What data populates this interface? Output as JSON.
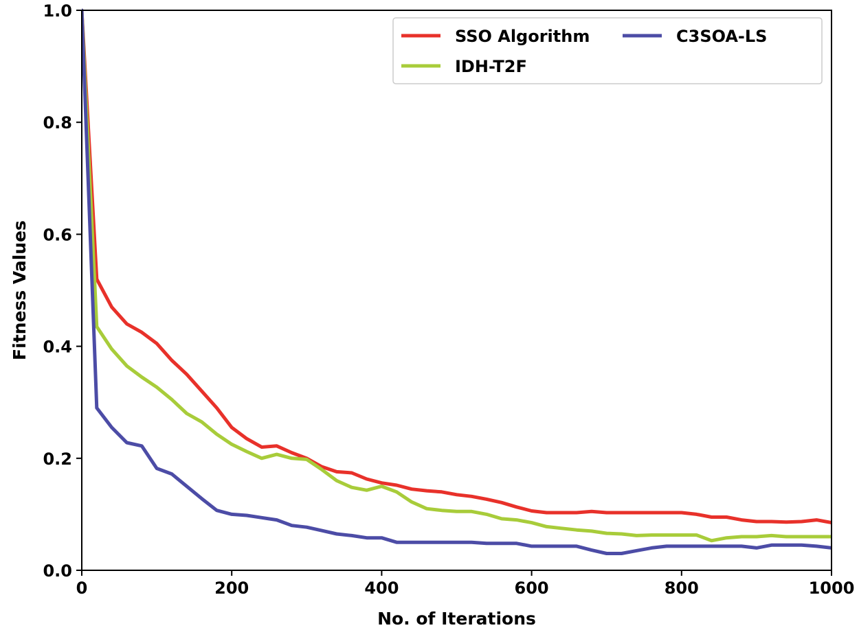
{
  "chart_data": {
    "type": "line",
    "title": "",
    "xlabel": "No. of Iterations",
    "ylabel": "Fitness Values",
    "xlim": [
      0,
      1000
    ],
    "ylim": [
      0.0,
      1.0
    ],
    "xticks": [
      0,
      200,
      400,
      600,
      800,
      1000
    ],
    "xtick_labels": [
      "0",
      "200",
      "400",
      "600",
      "800",
      "1000"
    ],
    "yticks": [
      0.0,
      0.2,
      0.4,
      0.6,
      0.8,
      1.0
    ],
    "ytick_labels": [
      "0.0",
      "0.2",
      "0.4",
      "0.6",
      "0.8",
      "1.0"
    ],
    "grid": false,
    "legend_position": "top-right",
    "series": [
      {
        "name": "SSO Algorithm",
        "color": "#e8312a",
        "x": [
          0,
          20,
          40,
          60,
          80,
          100,
          120,
          140,
          160,
          180,
          200,
          220,
          240,
          260,
          280,
          300,
          320,
          340,
          360,
          380,
          400,
          420,
          440,
          460,
          480,
          500,
          520,
          540,
          560,
          580,
          600,
          620,
          640,
          660,
          680,
          700,
          720,
          740,
          760,
          780,
          800,
          820,
          840,
          860,
          880,
          900,
          920,
          940,
          960,
          980,
          1000
        ],
        "values": [
          1.0,
          0.52,
          0.47,
          0.44,
          0.425,
          0.405,
          0.375,
          0.35,
          0.32,
          0.29,
          0.255,
          0.235,
          0.22,
          0.222,
          0.21,
          0.2,
          0.185,
          0.176,
          0.174,
          0.163,
          0.156,
          0.152,
          0.145,
          0.142,
          0.14,
          0.135,
          0.132,
          0.127,
          0.121,
          0.113,
          0.106,
          0.103,
          0.103,
          0.103,
          0.105,
          0.103,
          0.103,
          0.103,
          0.103,
          0.103,
          0.103,
          0.1,
          0.095,
          0.095,
          0.09,
          0.087,
          0.087,
          0.086,
          0.087,
          0.09,
          0.085
        ]
      },
      {
        "name": "IDH-T2F",
        "color": "#a8cc3a",
        "x": [
          0,
          20,
          40,
          60,
          80,
          100,
          120,
          140,
          160,
          180,
          200,
          220,
          240,
          260,
          280,
          300,
          320,
          340,
          360,
          380,
          400,
          420,
          440,
          460,
          480,
          500,
          520,
          540,
          560,
          580,
          600,
          620,
          640,
          660,
          680,
          700,
          720,
          740,
          760,
          780,
          800,
          820,
          840,
          860,
          880,
          900,
          920,
          940,
          960,
          980,
          1000
        ],
        "values": [
          1.0,
          0.435,
          0.395,
          0.365,
          0.345,
          0.327,
          0.305,
          0.28,
          0.265,
          0.243,
          0.225,
          0.212,
          0.2,
          0.207,
          0.2,
          0.198,
          0.18,
          0.16,
          0.148,
          0.143,
          0.15,
          0.14,
          0.122,
          0.11,
          0.107,
          0.105,
          0.105,
          0.1,
          0.092,
          0.09,
          0.085,
          0.078,
          0.075,
          0.072,
          0.07,
          0.066,
          0.065,
          0.062,
          0.063,
          0.063,
          0.063,
          0.063,
          0.053,
          0.058,
          0.06,
          0.06,
          0.062,
          0.06,
          0.06,
          0.06,
          0.06
        ]
      },
      {
        "name": "C3SOA-LS",
        "color": "#4c4ca6",
        "x": [
          0,
          20,
          40,
          60,
          80,
          100,
          120,
          140,
          160,
          180,
          200,
          220,
          240,
          260,
          280,
          300,
          320,
          340,
          360,
          380,
          400,
          420,
          440,
          460,
          480,
          500,
          520,
          540,
          560,
          580,
          600,
          620,
          640,
          660,
          680,
          700,
          720,
          740,
          760,
          780,
          800,
          820,
          840,
          860,
          880,
          900,
          920,
          940,
          960,
          980,
          1000
        ],
        "values": [
          1.0,
          0.29,
          0.255,
          0.228,
          0.222,
          0.182,
          0.172,
          0.15,
          0.128,
          0.107,
          0.1,
          0.098,
          0.094,
          0.09,
          0.08,
          0.077,
          0.071,
          0.065,
          0.062,
          0.058,
          0.058,
          0.05,
          0.05,
          0.05,
          0.05,
          0.05,
          0.05,
          0.048,
          0.048,
          0.048,
          0.043,
          0.043,
          0.043,
          0.043,
          0.036,
          0.03,
          0.03,
          0.035,
          0.04,
          0.043,
          0.043,
          0.043,
          0.043,
          0.043,
          0.043,
          0.04,
          0.045,
          0.045,
          0.045,
          0.043,
          0.04
        ]
      }
    ]
  }
}
